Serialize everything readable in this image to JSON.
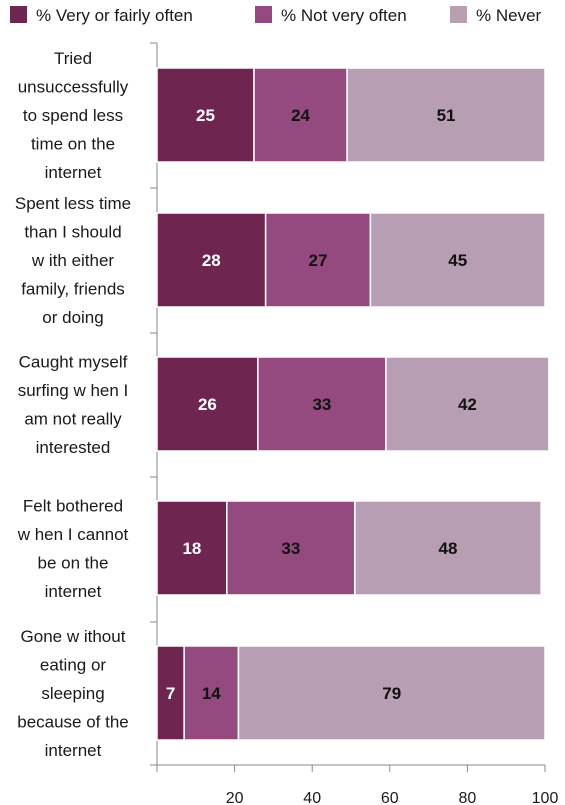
{
  "chart_data": {
    "type": "bar",
    "orientation": "horizontal",
    "stacked": true,
    "categories": [
      [
        "Tried",
        "unsuccessfully",
        "to spend less",
        "time on the",
        "internet"
      ],
      [
        "Spent less time",
        "than I should",
        "w ith either",
        "family, friends",
        "or doing"
      ],
      [
        "Caught myself",
        "surfing w hen I",
        "am not really",
        "interested"
      ],
      [
        "Felt bothered",
        "w hen I cannot",
        "be on the",
        "internet"
      ],
      [
        "Gone w ithout",
        "eating or",
        "sleeping",
        "because of the",
        "internet"
      ]
    ],
    "series": [
      {
        "name": "% Very or fairly often",
        "values": [
          25,
          28,
          26,
          18,
          7
        ],
        "color": "#6e2550",
        "label_color": "#ffffff"
      },
      {
        "name": "% Not very often",
        "values": [
          24,
          27,
          33,
          33,
          14
        ],
        "color": "#944a7e",
        "label_color": "#111111"
      },
      {
        "name": "% Never",
        "values": [
          51,
          45,
          42,
          48,
          79
        ],
        "color": "#b89eb3",
        "label_color": "#111111"
      }
    ],
    "xlim": [
      0,
      100
    ],
    "xticks": [
      0,
      20,
      40,
      60,
      80,
      100
    ],
    "xtick_labels": [
      "",
      "20",
      "40",
      "60",
      "80",
      "100"
    ],
    "legend_position": "top",
    "grid": false,
    "title": "",
    "xlabel": "",
    "ylabel": ""
  }
}
